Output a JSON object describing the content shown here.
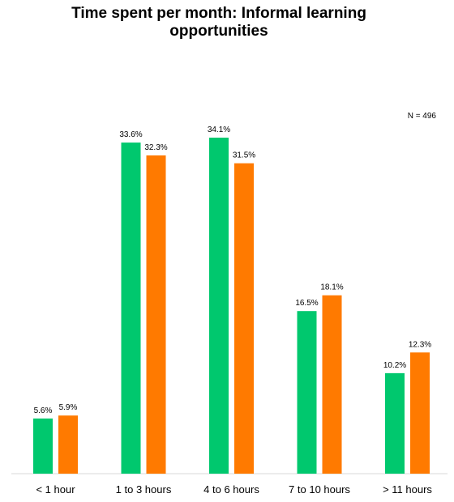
{
  "chart_data": {
    "type": "bar",
    "title": "Time spent per month: Informal learning\nopportunities",
    "annotation": "N = 496",
    "categories": [
      "< 1 hour",
      "1 to 3 hours",
      "4 to 6 hours",
      "7 to 10 hours",
      "> 11 hours"
    ],
    "series": [
      {
        "values": [
          5.6,
          33.6,
          34.1,
          16.5,
          10.2
        ],
        "value_labels": [
          "5.6%",
          "33.6%",
          "34.1%",
          "16.5%",
          "10.2%"
        ],
        "color": "#00c86e"
      },
      {
        "values": [
          5.9,
          32.3,
          31.5,
          18.1,
          12.3
        ],
        "value_labels": [
          "5.9%",
          "32.3%",
          "31.5%",
          "18.1%",
          "12.3%"
        ],
        "color": "#ff7a00"
      }
    ],
    "xlabel": "",
    "ylabel": "",
    "ylim": [
      0,
      34.1
    ],
    "grid": false,
    "legend": "none"
  }
}
